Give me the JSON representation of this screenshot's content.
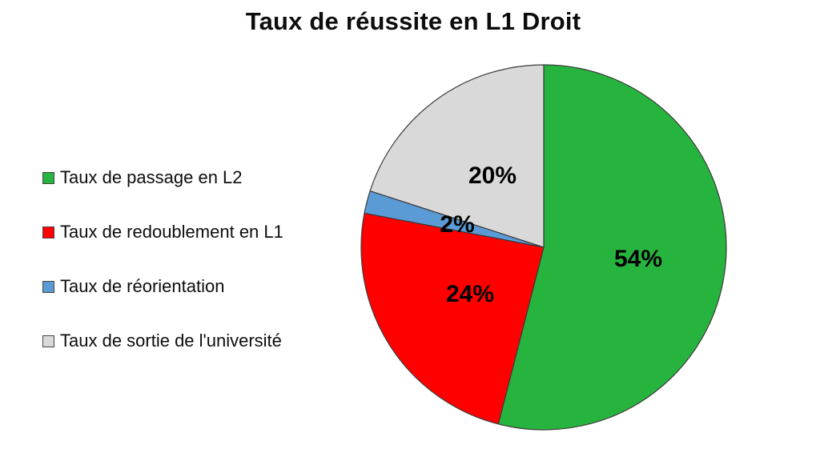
{
  "chart_data": {
    "type": "pie",
    "title": "Taux de réussite en L1 Droit",
    "unit": "%",
    "direction": "clockwise",
    "start_angle_deg": 0,
    "legend_position": "left",
    "background_color": "#FFFFFF",
    "outline_color": "#3B3B3B",
    "slices": [
      {
        "label": "Taux de passage en L2",
        "value": 54,
        "data_label": "54%",
        "color": "#27B43E",
        "label_r": 0.52
      },
      {
        "label": "Taux de redoublement en L1",
        "value": 24,
        "data_label": "24%",
        "color": "#FF0000",
        "label_r": 0.48
      },
      {
        "label": "Taux de réorientation",
        "value": 2,
        "data_label": "2%",
        "color": "#5B9BD5",
        "label_r": 0.49
      },
      {
        "label": "Taux de sortie de l'université",
        "value": 20,
        "data_label": "20%",
        "color": "#D9D9D9",
        "label_r": 0.48
      }
    ]
  }
}
